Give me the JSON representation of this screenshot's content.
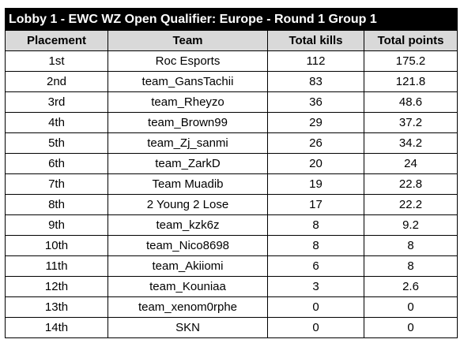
{
  "table": {
    "title": "Lobby 1 - EWC WZ Open Qualifier: Europe - Round 1 Group 1",
    "headers": [
      "Placement",
      "Team",
      "Total kills",
      "Total points"
    ],
    "rows": [
      [
        "1st",
        "Roc Esports",
        "112",
        "175.2"
      ],
      [
        "2nd",
        "team_GansTachii",
        "83",
        "121.8"
      ],
      [
        "3rd",
        "team_Rheyzo",
        "36",
        "48.6"
      ],
      [
        "4th",
        "team_Brown99",
        "29",
        "37.2"
      ],
      [
        "5th",
        "team_Zj_sanmi",
        "26",
        "34.2"
      ],
      [
        "6th",
        "team_ZarkD",
        "20",
        "24"
      ],
      [
        "7th",
        "Team Muadib",
        "19",
        "22.8"
      ],
      [
        "8th",
        "2 Young 2 Lose",
        "17",
        "22.2"
      ],
      [
        "9th",
        "team_kzk6z",
        "8",
        "9.2"
      ],
      [
        "10th",
        "team_Nico8698",
        "8",
        "8"
      ],
      [
        "11th",
        "team_Akiiomi",
        "6",
        "8"
      ],
      [
        "12th",
        "team_Kouniaa",
        "3",
        "2.6"
      ],
      [
        "13th",
        "team_xenom0rphe",
        "0",
        "0"
      ],
      [
        "14th",
        "SKN",
        "0",
        "0"
      ]
    ]
  }
}
